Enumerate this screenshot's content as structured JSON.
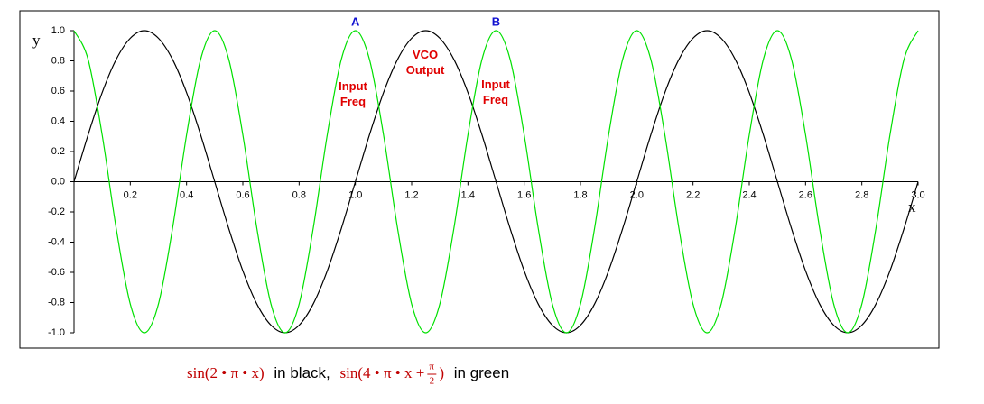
{
  "chart_data": {
    "type": "line",
    "x_label": "x",
    "y_label": "y",
    "xlim": [
      0,
      3
    ],
    "ylim": [
      -1,
      1
    ],
    "xticks": [
      0.2,
      0.4,
      0.6,
      0.8,
      {
        "value": 1,
        "label": "1.0"
      },
      1.2,
      1.4,
      1.6,
      1.8,
      {
        "value": 2,
        "label": "2.0"
      },
      2.2,
      2.4,
      2.6,
      2.8,
      {
        "value": 3,
        "label": "3.0"
      }
    ],
    "yticks": [
      {
        "value": -1,
        "label": "-1.0"
      },
      -0.8,
      -0.6,
      -0.4,
      -0.2,
      {
        "value": 0,
        "label": "0.0"
      },
      0.2,
      0.4,
      0.6,
      0.8,
      {
        "value": 1,
        "label": "1.0"
      }
    ],
    "x": [
      0,
      0.05,
      0.1,
      0.15,
      0.2,
      0.25,
      0.3,
      0.35,
      0.4,
      0.45,
      0.5,
      0.55,
      0.6,
      0.65,
      0.7,
      0.75,
      0.8,
      0.85,
      0.9,
      0.95,
      1,
      1.05,
      1.1,
      1.15,
      1.2,
      1.25,
      1.3,
      1.35,
      1.4,
      1.45,
      1.5,
      1.55,
      1.6,
      1.65,
      1.7,
      1.75,
      1.8,
      1.85,
      1.9,
      1.95,
      2,
      2.05,
      2.1,
      2.15,
      2.2,
      2.25,
      2.3,
      2.35,
      2.4,
      2.45,
      2.5,
      2.55,
      2.6,
      2.65,
      2.7,
      2.75,
      2.8,
      2.85,
      2.9,
      2.95,
      3
    ],
    "series": [
      {
        "color": "#000000",
        "values": [
          0,
          0.31,
          0.59,
          0.81,
          0.95,
          1,
          0.95,
          0.81,
          0.59,
          0.31,
          0,
          -0.31,
          -0.59,
          -0.81,
          -0.95,
          -1,
          -0.95,
          -0.81,
          -0.59,
          -0.31,
          0,
          0.31,
          0.59,
          0.81,
          0.95,
          1,
          0.95,
          0.81,
          0.59,
          0.31,
          0,
          -0.31,
          -0.59,
          -0.81,
          -0.95,
          -1,
          -0.95,
          -0.81,
          -0.59,
          -0.31,
          0,
          0.31,
          0.59,
          0.81,
          0.95,
          1,
          0.95,
          0.81,
          0.59,
          0.31,
          0,
          -0.31,
          -0.59,
          -0.81,
          -0.95,
          -1,
          -0.95,
          -0.81,
          -0.59,
          -0.31,
          0
        ]
      },
      {
        "color": "#00e000",
        "values": [
          1,
          0.81,
          0.31,
          -0.31,
          -0.81,
          -1,
          -0.81,
          -0.31,
          0.31,
          0.81,
          1,
          0.81,
          0.31,
          -0.31,
          -0.81,
          -1,
          -0.81,
          -0.31,
          0.31,
          0.81,
          1,
          0.81,
          0.31,
          -0.31,
          -0.81,
          -1,
          -0.81,
          -0.31,
          0.31,
          0.81,
          1,
          0.81,
          0.31,
          -0.31,
          -0.81,
          -1,
          -0.81,
          -0.31,
          0.31,
          0.81,
          1,
          0.81,
          0.31,
          -0.31,
          -0.81,
          -1,
          -0.81,
          -0.31,
          0.31,
          0.81,
          1,
          0.81,
          0.31,
          -0.31,
          -0.81,
          -1,
          -0.81,
          -0.31,
          0.31,
          0.81,
          1
        ]
      }
    ],
    "annotations": [
      {
        "text": "A"
      },
      {
        "text": "B"
      },
      {
        "lines": [
          "Input",
          "Freq"
        ]
      },
      {
        "lines": [
          "VCO",
          "Output"
        ]
      },
      {
        "lines": [
          "Input",
          "Freq"
        ]
      }
    ],
    "caption": {
      "f1": "sin(2 • π • x)",
      "t1": "in black,",
      "f2": "sin(4 • π • x +",
      "num": "π",
      "den": "2",
      "f2end": ")",
      "t2": "in green"
    }
  }
}
